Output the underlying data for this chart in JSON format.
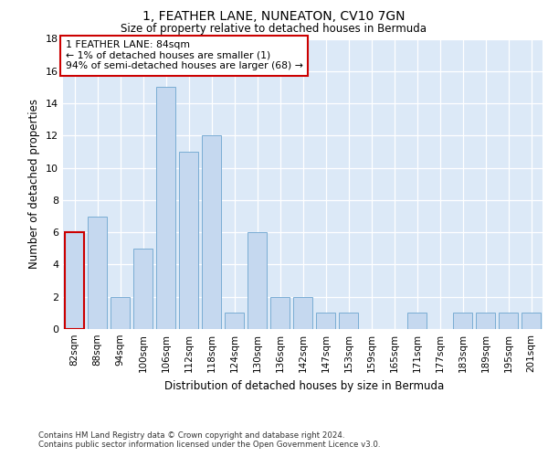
{
  "title1": "1, FEATHER LANE, NUNEATON, CV10 7GN",
  "title2": "Size of property relative to detached houses in Bermuda",
  "xlabel": "Distribution of detached houses by size in Bermuda",
  "ylabel": "Number of detached properties",
  "categories": [
    "82sqm",
    "88sqm",
    "94sqm",
    "100sqm",
    "106sqm",
    "112sqm",
    "118sqm",
    "124sqm",
    "130sqm",
    "136sqm",
    "142sqm",
    "147sqm",
    "153sqm",
    "159sqm",
    "165sqm",
    "171sqm",
    "177sqm",
    "183sqm",
    "189sqm",
    "195sqm",
    "201sqm"
  ],
  "values": [
    6,
    7,
    2,
    5,
    15,
    11,
    12,
    1,
    6,
    2,
    2,
    1,
    1,
    0,
    0,
    1,
    0,
    1,
    1,
    1,
    1
  ],
  "highlight_index": 0,
  "bar_color": "#c5d8ef",
  "bar_edge_color": "#7aadd4",
  "highlight_edge_color": "#cc0000",
  "annotation_line1": "1 FEATHER LANE: 84sqm",
  "annotation_line2": "← 1% of detached houses are smaller (1)",
  "annotation_line3": "94% of semi-detached houses are larger (68) →",
  "ylim_max": 18,
  "yticks": [
    0,
    2,
    4,
    6,
    8,
    10,
    12,
    14,
    16,
    18
  ],
  "bg_color": "#dce9f7",
  "footer1": "Contains HM Land Registry data © Crown copyright and database right 2024.",
  "footer2": "Contains public sector information licensed under the Open Government Licence v3.0."
}
